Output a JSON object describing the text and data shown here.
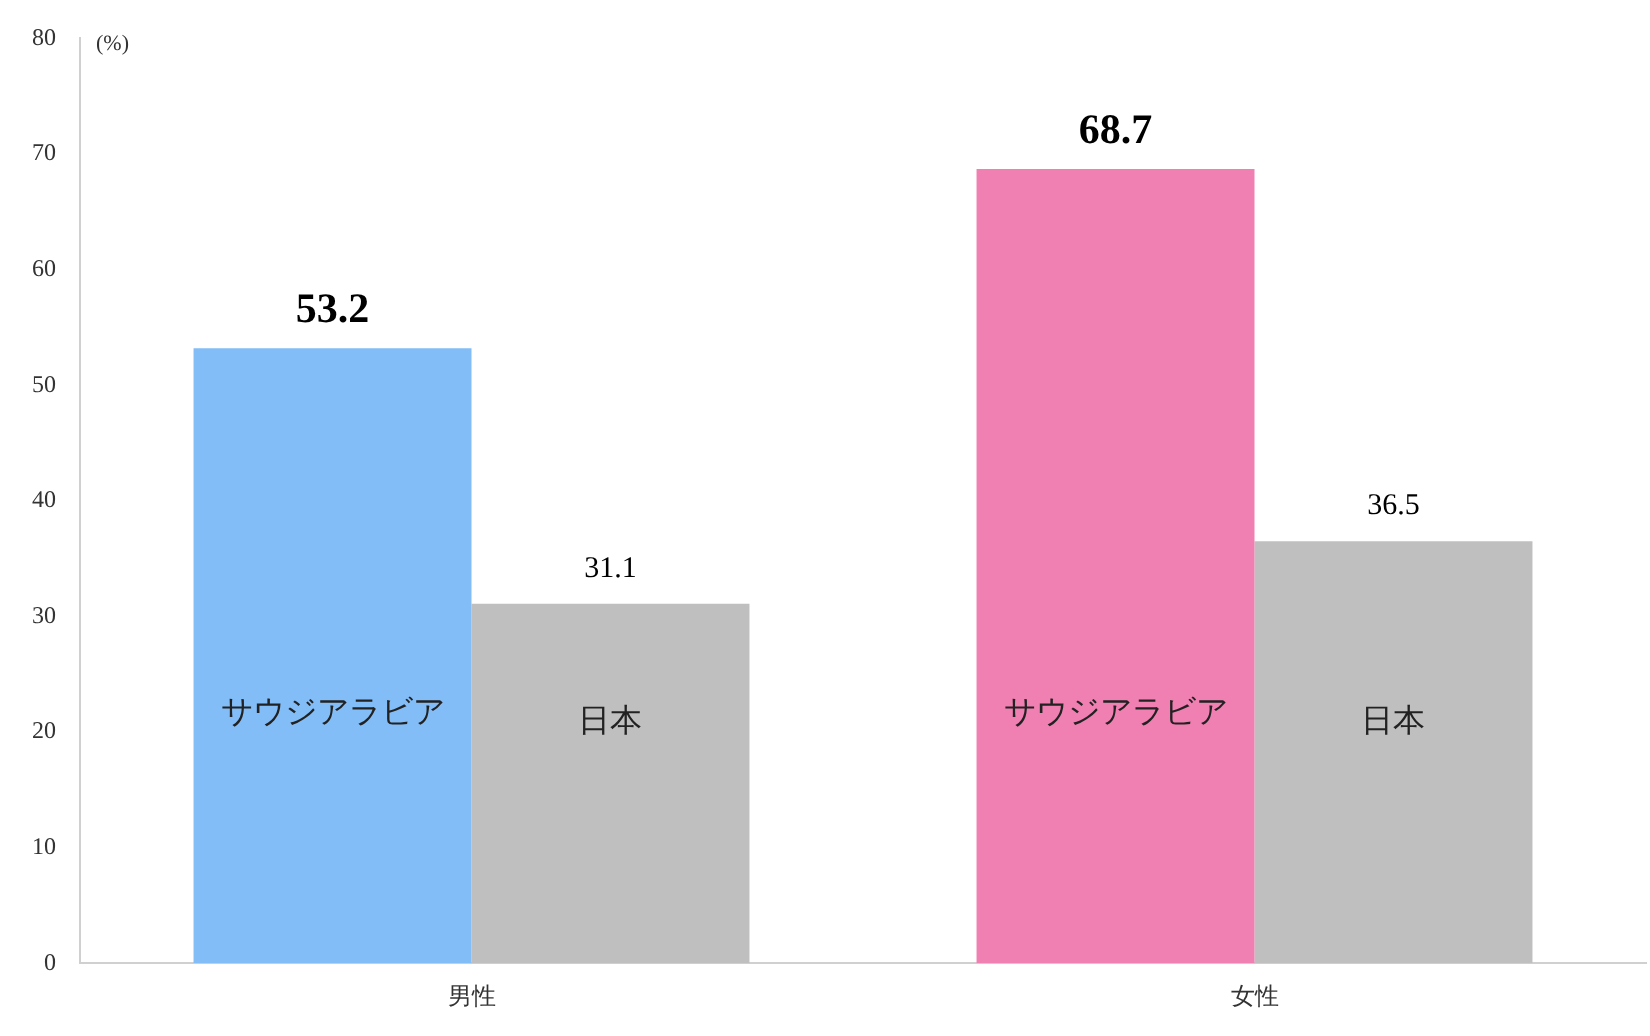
{
  "chart_data": {
    "type": "bar",
    "ylabel": "(%)",
    "categories": [
      "男性",
      "女性"
    ],
    "series": [
      {
        "name": "サウジアラビア",
        "colors": [
          "#82bdf7",
          "#f07fb2"
        ],
        "values": [
          53.2,
          68.7
        ]
      },
      {
        "name": "日本",
        "color": "#bfbfbf",
        "values": [
          31.1,
          36.5
        ]
      }
    ],
    "ylim": [
      0,
      80
    ],
    "yticks": [
      0,
      10,
      20,
      30,
      40,
      50,
      60,
      70,
      80
    ],
    "grid": false,
    "legend": false,
    "data_labels": true
  }
}
